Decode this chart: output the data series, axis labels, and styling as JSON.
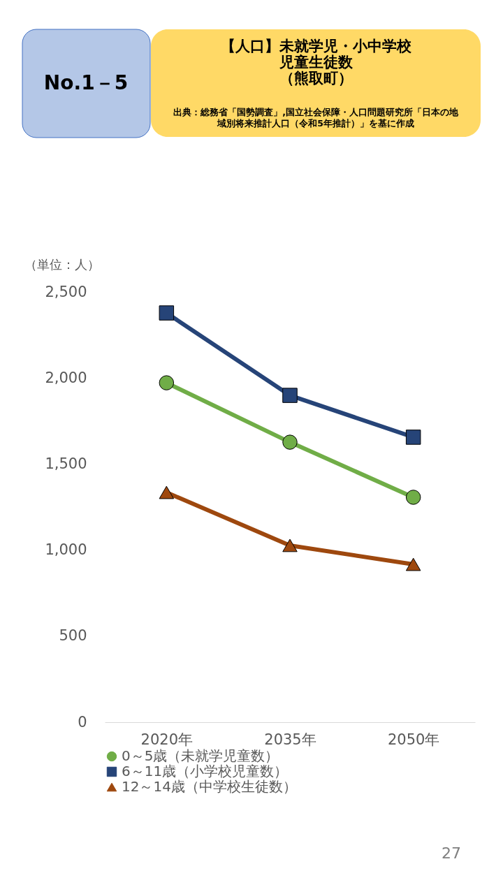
{
  "chart_data": {
    "type": "line",
    "title": "【人口】未就学児・小中学校児童生徒数（熊取町）",
    "annotations": [
      "No.1－5",
      "出典：総務省「国勢調査」,国立社会保障・人口問題研究所「日本の地域別将来推計人口（令和5年推計）」を基に作成",
      "27"
    ],
    "ylabel": "（単位：人）",
    "categories": [
      "2020年",
      "2035年",
      "2050年"
    ],
    "series": [
      {
        "name": "0～5歳（未就学児童数）",
        "color": "#70ad47",
        "marker": "circle",
        "values": [
          1972,
          1627,
          1307
        ]
      },
      {
        "name": "6～11歳（小学校児童数）",
        "color": "#264478",
        "marker": "square",
        "values": [
          2378,
          1899,
          1656
        ]
      },
      {
        "name": "12～14歳（中学校生徒数）",
        "color": "#9e480e",
        "marker": "triangle",
        "values": [
          1335,
          1027,
          917
        ]
      }
    ],
    "ylim": [
      0,
      2500
    ],
    "yticks": [
      0,
      500,
      {
        "value": 1000,
        "label": "1,000"
      },
      {
        "value": 1500,
        "label": "1,500"
      },
      {
        "value": 2000,
        "label": "2,000"
      },
      {
        "value": 2500,
        "label": "2,500"
      }
    ],
    "grid": false,
    "legend": "bottom"
  }
}
